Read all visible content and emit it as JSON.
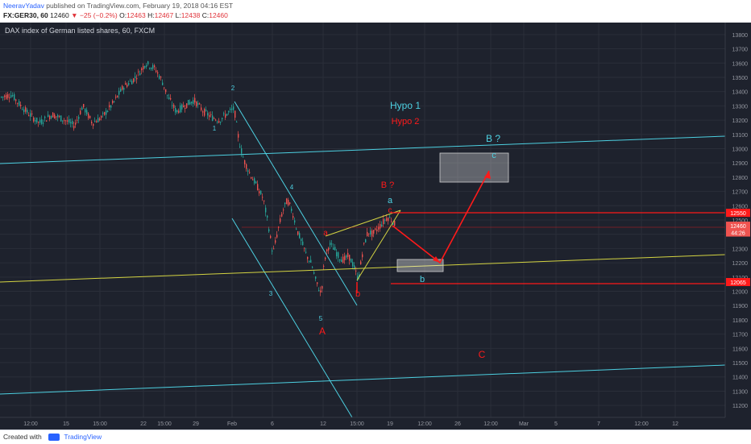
{
  "header": {
    "author": "NeeravYadav",
    "published_text": "published on TradingView.com, February 19, 2018 04:16 EST",
    "symbol": "FX:GER30, 60",
    "last": "12460",
    "change": "−25 (−0.2%)",
    "o_label": "O:",
    "o": "12463",
    "h_label": "H:",
    "h": "12467",
    "l_label": "L:",
    "l": "12438",
    "c_label": "C:",
    "c": "12460"
  },
  "footer": {
    "created_with": "Created with",
    "brand": "TradingView"
  },
  "colors": {
    "background": "#1e222d",
    "grid": "#2a2e39",
    "up": "#26a69a",
    "down": "#ef5350",
    "cyan": "#4dd0e1",
    "yellow": "#d4d442",
    "red": "#ff1a1a",
    "axis_text": "#9598a1"
  },
  "chart_data": {
    "type": "candlestick",
    "title": "DAX index of German listed shares, 60, FXCM",
    "ylim": [
      11150,
      13850
    ],
    "y_ticks": [
      11200,
      11300,
      11400,
      11500,
      11600,
      11700,
      11800,
      11900,
      12000,
      12100,
      12200,
      12300,
      12400,
      12500,
      12600,
      12700,
      12800,
      12900,
      13000,
      13100,
      13200,
      13300,
      13400,
      13500,
      13600,
      13700,
      13800
    ],
    "x_ticks": [
      "12:00",
      "15",
      "15:00",
      "22",
      "15:00",
      "29",
      "Feb",
      "6",
      "12",
      "15:00",
      "19",
      "12:00",
      "26",
      "12:00",
      "Mar",
      "5",
      "7",
      "12:00",
      "12"
    ],
    "price_path": [
      [
        0,
        13360
      ],
      [
        14,
        13380
      ],
      [
        22,
        13320
      ],
      [
        34,
        13250
      ],
      [
        48,
        13180
      ],
      [
        64,
        13240
      ],
      [
        80,
        13200
      ],
      [
        92,
        13160
      ],
      [
        102,
        13300
      ],
      [
        114,
        13180
      ],
      [
        126,
        13220
      ],
      [
        140,
        13320
      ],
      [
        152,
        13430
      ],
      [
        164,
        13480
      ],
      [
        172,
        13530
      ],
      [
        180,
        13600
      ],
      [
        192,
        13560
      ],
      [
        200,
        13480
      ],
      [
        208,
        13360
      ],
      [
        218,
        13260
      ],
      [
        228,
        13300
      ],
      [
        240,
        13340
      ],
      [
        252,
        13260
      ],
      [
        262,
        13220
      ],
      [
        272,
        13200
      ],
      [
        282,
        13250
      ],
      [
        290,
        13280
      ],
      [
        296,
        13050
      ],
      [
        302,
        12920
      ],
      [
        310,
        12820
      ],
      [
        318,
        12740
      ],
      [
        326,
        12650
      ],
      [
        332,
        12480
      ],
      [
        338,
        12260
      ],
      [
        344,
        12420
      ],
      [
        350,
        12560
      ],
      [
        356,
        12640
      ],
      [
        362,
        12560
      ],
      [
        368,
        12430
      ],
      [
        374,
        12340
      ],
      [
        380,
        12250
      ],
      [
        386,
        12190
      ],
      [
        392,
        12060
      ],
      [
        398,
        11980
      ],
      [
        402,
        12220
      ],
      [
        408,
        12330
      ],
      [
        414,
        12300
      ],
      [
        420,
        12240
      ],
      [
        426,
        12220
      ],
      [
        432,
        12250
      ],
      [
        438,
        12180
      ],
      [
        444,
        12080
      ],
      [
        450,
        12300
      ],
      [
        456,
        12420
      ],
      [
        462,
        12400
      ],
      [
        468,
        12440
      ],
      [
        474,
        12480
      ],
      [
        480,
        12520
      ],
      [
        486,
        12500
      ],
      [
        490,
        12460
      ]
    ],
    "right_axis_labels": [
      {
        "price": 12550,
        "text": "12550",
        "color": "#ff1a1a"
      },
      {
        "price": 12460,
        "text": "12460",
        "color": "#ef5350"
      },
      {
        "price": 12412,
        "text": "44:26",
        "color": "#ef5350"
      },
      {
        "price": 12065,
        "text": "12065",
        "color": "#ff1a1a"
      }
    ],
    "annotations": [
      {
        "text": "Hypo 1",
        "color": "#4dd0e1"
      },
      {
        "text": "Hypo 2",
        "color": "#ff1a1a"
      },
      {
        "text": "B ?",
        "color": "#4dd0e1"
      },
      {
        "text": "B ?",
        "color": "#ff1a1a"
      },
      {
        "text": "c",
        "color": "#4dd0e1"
      },
      {
        "text": "a",
        "color": "#4dd0e1"
      },
      {
        "text": "c",
        "color": "#ff1a1a"
      },
      {
        "text": "a",
        "color": "#ff1a1a"
      },
      {
        "text": "b",
        "color": "#ff1a1a"
      },
      {
        "text": "b",
        "color": "#4dd0e1"
      },
      {
        "text": "1",
        "color": "#4dd0e1"
      },
      {
        "text": "2",
        "color": "#4dd0e1"
      },
      {
        "text": "3",
        "color": "#4dd0e1"
      },
      {
        "text": "4",
        "color": "#4dd0e1"
      },
      {
        "text": "5",
        "color": "#4dd0e1"
      },
      {
        "text": "A",
        "color": "#ff1a1a"
      },
      {
        "text": "C",
        "color": "#ff1a1a"
      }
    ]
  }
}
